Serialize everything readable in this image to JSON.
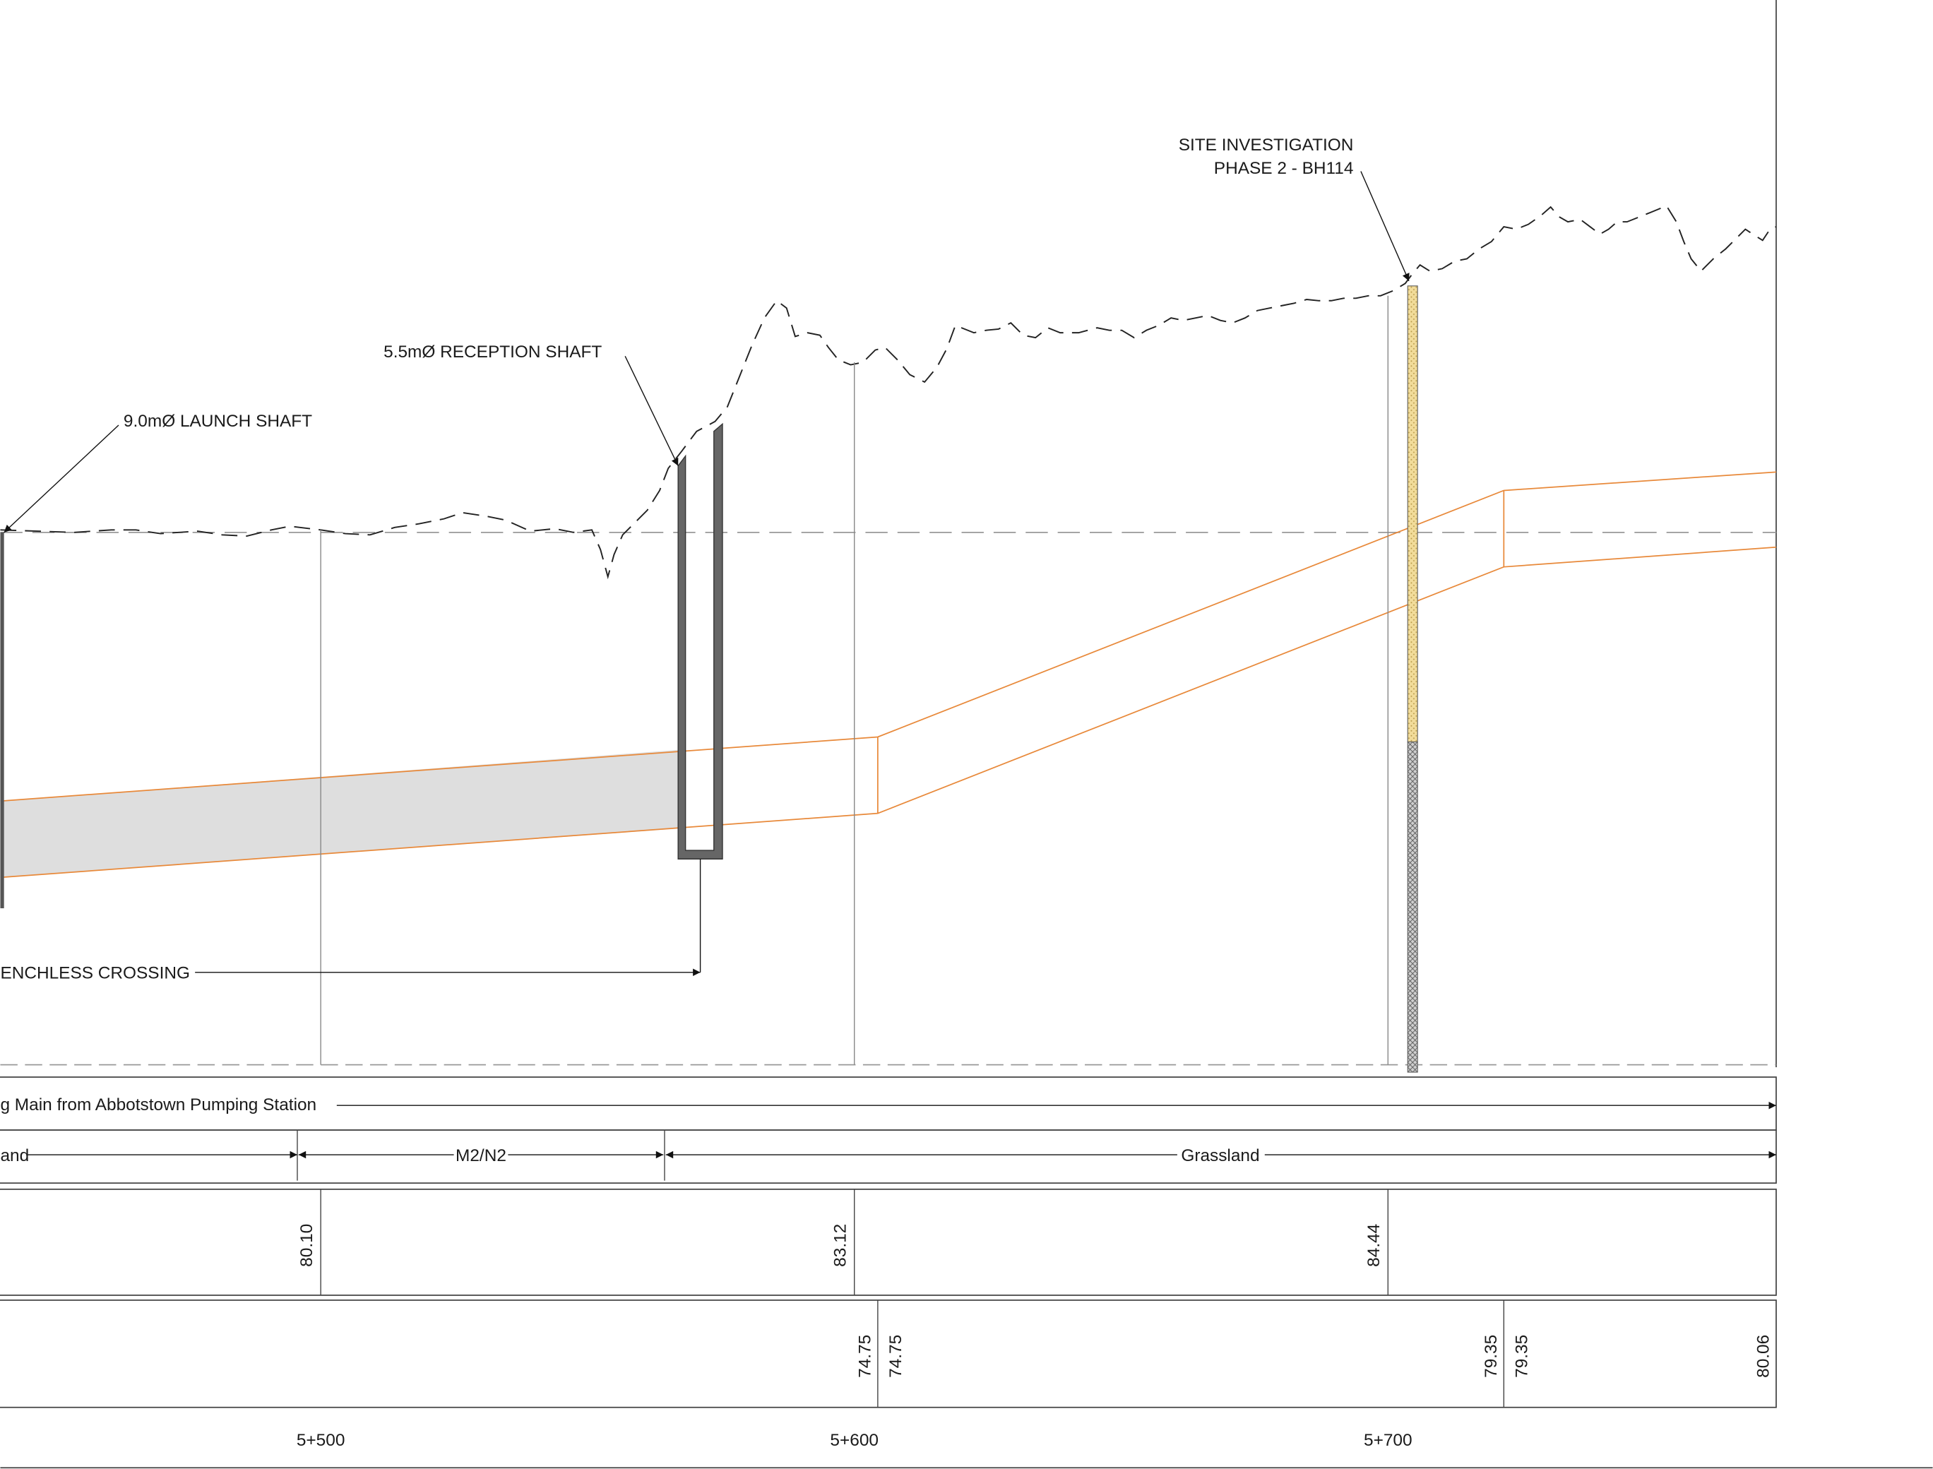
{
  "annotations": {
    "launch_shaft": "9.0mØ LAUNCH SHAFT",
    "reception_shaft": "5.5mØ RECEPTION SHAFT",
    "site_investigation_line1": "SITE INVESTIGATION",
    "site_investigation_line2": "PHASE 2 - BH114",
    "trenchless_crossing": "ENCHLESS CROSSING"
  },
  "bands": {
    "main_label": "g Main from Abbotstown Pumping Station",
    "land_use": {
      "left": "and",
      "middle": "M2/N2",
      "right": "Grassland"
    }
  },
  "ground_levels": [
    "80.10",
    "83.12",
    "84.44"
  ],
  "invert_levels": [
    "74.75",
    "74.75",
    "79.35",
    "79.35",
    "80.06"
  ],
  "chainages": [
    "5+500",
    "5+600",
    "5+700"
  ],
  "colors": {
    "pipe_outline": "#e8893a",
    "ground_line": "#222222",
    "datum_dash": "#999999",
    "shaft_fill": "#555555",
    "trenchless_fill": "#dedede",
    "borehole_upper": "#f2dc9a",
    "borehole_lower": "#9a9a9a"
  }
}
